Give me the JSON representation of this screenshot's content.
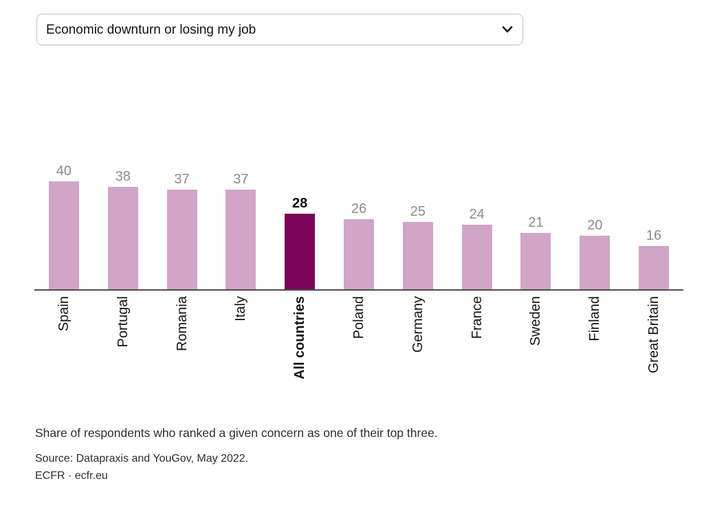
{
  "dropdown": {
    "selected_option": "Economic downturn or losing my job"
  },
  "chart_data": {
    "type": "bar",
    "title": "",
    "categories": [
      "Spain",
      "Portugal",
      "Romania",
      "Italy",
      "All countries",
      "Poland",
      "Germany",
      "France",
      "Sweden",
      "Finland",
      "Great Britain"
    ],
    "values": [
      40,
      38,
      37,
      37,
      28,
      26,
      25,
      24,
      21,
      20,
      16
    ],
    "highlight_category": "All countries",
    "ylim": [
      0,
      40
    ],
    "grid": false,
    "legend": false,
    "value_labels_shown": true,
    "colors": {
      "bar": "#d0a5c6",
      "highlight_bar": "#7a0457",
      "value_label": "#8c8c8c",
      "highlight_value_label": "#0d0d0d",
      "axis": "#4d4d4d"
    }
  },
  "notes": {
    "description": "Share of respondents who ranked a given concern as one of their top three.",
    "source": "Source: Datapraxis and YouGov, May 2022.",
    "byline": "ECFR · ecfr.eu"
  }
}
